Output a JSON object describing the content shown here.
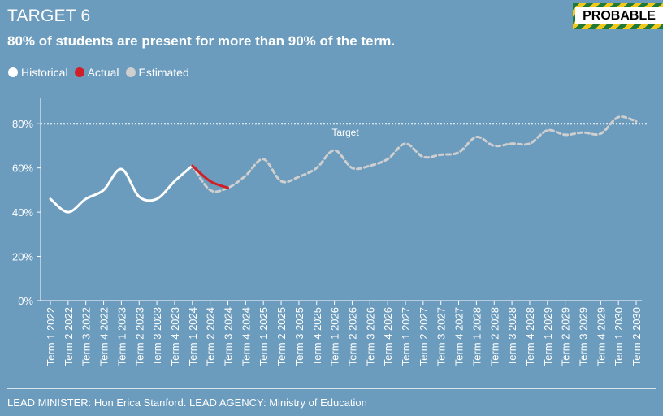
{
  "header": {
    "target_label": "TARGET 6",
    "badge_label": "PROBABLE",
    "subtitle": "80% of students are present for more than 90% of the term."
  },
  "legend": [
    {
      "label": "Historical",
      "color": "#ffffff"
    },
    {
      "label": "Actual",
      "color": "#d01f27"
    },
    {
      "label": "Estimated",
      "color": "#cfcfcf"
    }
  ],
  "footer": {
    "text": "LEAD MINISTER: Hon Erica Stanford. LEAD AGENCY: Ministry of Education"
  },
  "colors": {
    "background": "#6b9bbd",
    "historical": "#ffffff",
    "actual": "#d01f27",
    "estimated": "#cfcfcf",
    "badge_green": "#1f7a3a",
    "badge_yellow": "#f2c81a"
  },
  "chart_data": {
    "type": "line",
    "categories": [
      "Term 1 2022",
      "Term 2 2022",
      "Term 3 2022",
      "Term 4 2022",
      "Term 1 2023",
      "Term 2 2023",
      "Term 3 2023",
      "Term 4 2023",
      "Term 1 2024",
      "Term 2 2024",
      "Term 3 2024",
      "Term 4 2024",
      "Term 1 2025",
      "Term 2 2025",
      "Term 3 2025",
      "Term 4 2025",
      "Term 1 2026",
      "Term 2 2026",
      "Term 3 2026",
      "Term 4 2026",
      "Term 1 2027",
      "Term 2 2027",
      "Term 3 2027",
      "Term 4 2027",
      "Term 1 2028",
      "Term 2 2028",
      "Term 3 2028",
      "Term 4 2028",
      "Term 1 2029",
      "Term 2 2029",
      "Term 3 2029",
      "Term 4 2029",
      "Term 1 2030",
      "Term 2 2030"
    ],
    "ylim": [
      0,
      90
    ],
    "yticks": [
      0,
      20,
      40,
      60,
      80
    ],
    "ytick_labels": [
      "0%",
      "20%",
      "40%",
      "60%",
      "80%"
    ],
    "target": {
      "value": 80,
      "label": "Target"
    },
    "series": [
      {
        "name": "Historical",
        "values": [
          46,
          40,
          46,
          50,
          59.5,
          47,
          46,
          54,
          61,
          null,
          null,
          null,
          null,
          null,
          null,
          null,
          null,
          null,
          null,
          null,
          null,
          null,
          null,
          null,
          null,
          null,
          null,
          null,
          null,
          null,
          null,
          null,
          null,
          null
        ]
      },
      {
        "name": "Actual",
        "values": [
          null,
          null,
          null,
          null,
          null,
          null,
          null,
          null,
          61,
          54,
          51,
          null,
          null,
          null,
          null,
          null,
          null,
          null,
          null,
          null,
          null,
          null,
          null,
          null,
          null,
          null,
          null,
          null,
          null,
          null,
          null,
          null,
          null,
          null
        ]
      },
      {
        "name": "Estimated",
        "values": [
          null,
          null,
          null,
          null,
          null,
          null,
          null,
          null,
          61,
          50,
          51,
          56.5,
          64,
          54,
          56,
          60,
          68,
          60,
          61,
          64,
          71,
          65,
          66,
          67,
          74,
          70,
          71,
          71,
          77,
          75,
          76,
          75.5,
          83,
          81
        ]
      }
    ]
  }
}
